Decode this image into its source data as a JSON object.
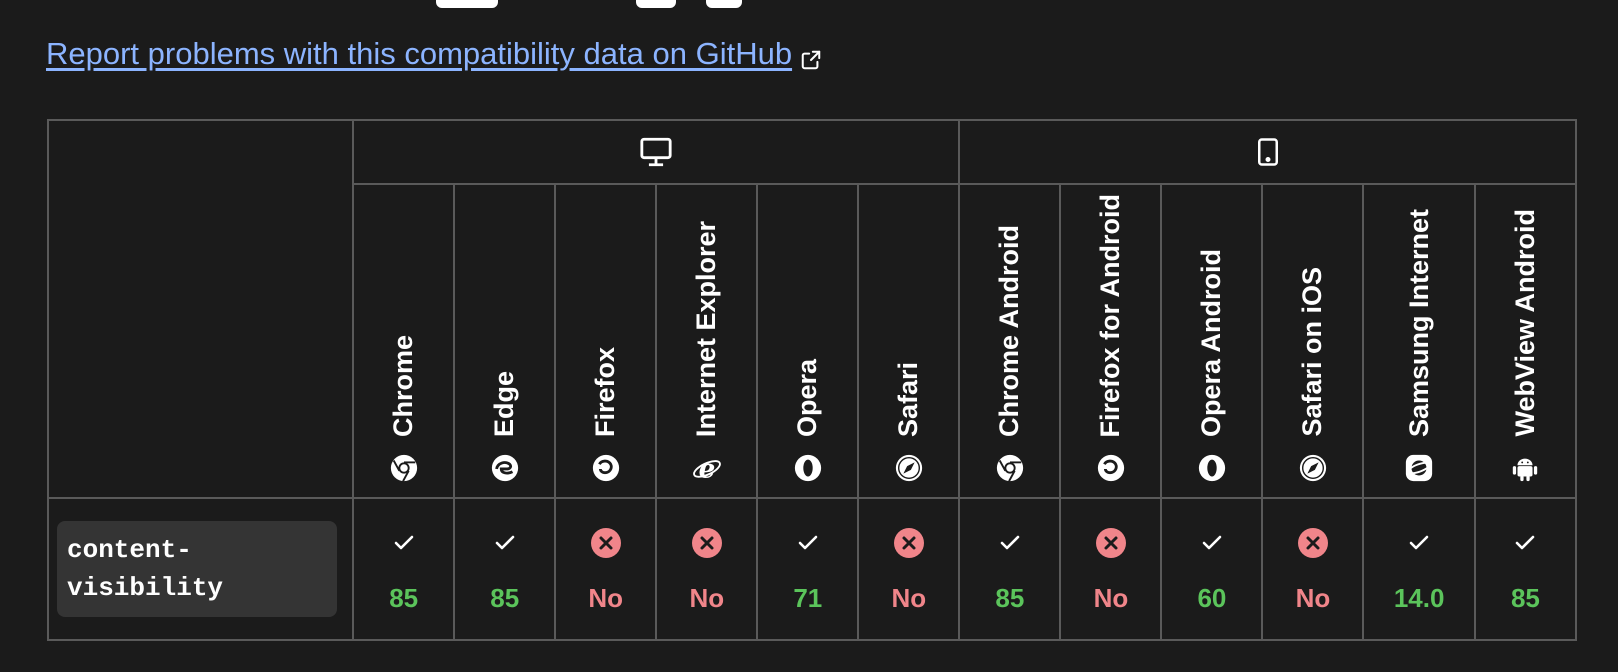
{
  "report_link": {
    "text": "Report problems with this compatibility data on GitHub"
  },
  "feature": {
    "name": "content-visibility"
  },
  "colors": {
    "supported": "#5bc45b",
    "unsupported": "#f0858a",
    "link": "#8cb4ff"
  },
  "platforms": [
    {
      "name": "desktop",
      "icon": "desktop-icon"
    },
    {
      "name": "mobile",
      "icon": "mobile-icon"
    }
  ],
  "browsers": [
    {
      "name": "Chrome",
      "icon": "chrome-icon",
      "supported": true,
      "version": "85"
    },
    {
      "name": "Edge",
      "icon": "edge-icon",
      "supported": true,
      "version": "85"
    },
    {
      "name": "Firefox",
      "icon": "firefox-icon",
      "supported": false,
      "version": "No"
    },
    {
      "name": "Internet Explorer",
      "icon": "internet-explorer-icon",
      "supported": false,
      "version": "No"
    },
    {
      "name": "Opera",
      "icon": "opera-icon",
      "supported": true,
      "version": "71"
    },
    {
      "name": "Safari",
      "icon": "safari-icon",
      "supported": false,
      "version": "No"
    },
    {
      "name": "Chrome Android",
      "icon": "chrome-icon",
      "supported": true,
      "version": "85"
    },
    {
      "name": "Firefox for Android",
      "icon": "firefox-icon",
      "supported": false,
      "version": "No"
    },
    {
      "name": "Opera Android",
      "icon": "opera-icon",
      "supported": true,
      "version": "60"
    },
    {
      "name": "Safari on iOS",
      "icon": "safari-icon",
      "supported": false,
      "version": "No"
    },
    {
      "name": "Samsung Internet",
      "icon": "samsung-internet-icon",
      "supported": true,
      "version": "14.0"
    },
    {
      "name": "WebView Android",
      "icon": "android-icon",
      "supported": true,
      "version": "85"
    }
  ]
}
